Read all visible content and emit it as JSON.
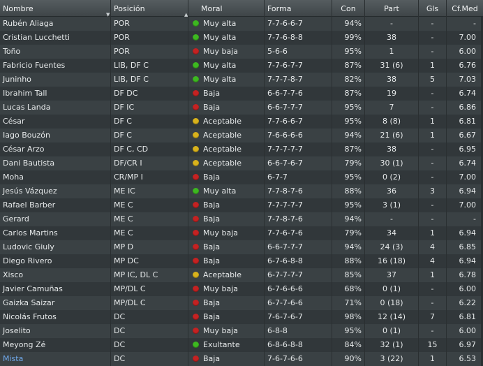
{
  "headers": {
    "name": "Nombre",
    "position": "Posición",
    "morale": "Moral",
    "form": "Forma",
    "con": "Con",
    "part": "Part",
    "gls": "Gls",
    "avg": "Cf.Med"
  },
  "morale_colors": {
    "green": "#3db820",
    "red": "#c42222",
    "yellow": "#d8b21c"
  },
  "link_color": "#6fa8ea",
  "players": [
    {
      "name": "Rubén Aliaga",
      "position": "POR",
      "morale": "Muy alta",
      "color": "green",
      "form": "7-7-6-6-7",
      "con": "94%",
      "part": "-",
      "gls": "-",
      "avg": "-"
    },
    {
      "name": "Cristian Lucchetti",
      "position": "POR",
      "morale": "Muy alta",
      "color": "green",
      "form": "7-7-6-8-8",
      "con": "99%",
      "part": "38",
      "gls": "-",
      "avg": "7.00"
    },
    {
      "name": "Toño",
      "position": "POR",
      "morale": "Muy baja",
      "color": "red",
      "form": "5-6-6",
      "con": "95%",
      "part": "1",
      "gls": "-",
      "avg": "6.00"
    },
    {
      "name": "Fabricio Fuentes",
      "position": "LIB, DF C",
      "morale": "Muy alta",
      "color": "green",
      "form": "7-7-6-7-7",
      "con": "87%",
      "part": "31 (6)",
      "gls": "1",
      "avg": "6.76"
    },
    {
      "name": "Juninho",
      "position": "LIB, DF C",
      "morale": "Muy alta",
      "color": "green",
      "form": "7-7-7-8-7",
      "con": "82%",
      "part": "38",
      "gls": "5",
      "avg": "7.03"
    },
    {
      "name": "Ibrahim Tall",
      "position": "DF DC",
      "morale": "Baja",
      "color": "red",
      "form": "6-6-7-7-6",
      "con": "87%",
      "part": "19",
      "gls": "-",
      "avg": "6.74"
    },
    {
      "name": "Lucas Landa",
      "position": "DF IC",
      "morale": "Baja",
      "color": "red",
      "form": "6-6-7-7-7",
      "con": "95%",
      "part": "7",
      "gls": "-",
      "avg": "6.86"
    },
    {
      "name": "César",
      "position": "DF C",
      "morale": "Aceptable",
      "color": "yellow",
      "form": "7-7-6-6-7",
      "con": "95%",
      "part": "8 (8)",
      "gls": "1",
      "avg": "6.81"
    },
    {
      "name": "Iago Bouzón",
      "position": "DF C",
      "morale": "Aceptable",
      "color": "yellow",
      "form": "7-6-6-6-6",
      "con": "94%",
      "part": "21 (6)",
      "gls": "1",
      "avg": "6.67"
    },
    {
      "name": "César Arzo",
      "position": "DF C, CD",
      "morale": "Aceptable",
      "color": "yellow",
      "form": "7-7-7-7-7",
      "con": "87%",
      "part": "38",
      "gls": "-",
      "avg": "6.95"
    },
    {
      "name": "Dani Bautista",
      "position": "DF/CR I",
      "morale": "Aceptable",
      "color": "yellow",
      "form": "6-6-7-6-7",
      "con": "79%",
      "part": "30 (1)",
      "gls": "-",
      "avg": "6.74"
    },
    {
      "name": "Moha",
      "position": "CR/MP I",
      "morale": "Baja",
      "color": "red",
      "form": "6-7-7",
      "con": "95%",
      "part": "0 (2)",
      "gls": "-",
      "avg": "7.00"
    },
    {
      "name": "Jesús Vázquez",
      "position": "ME IC",
      "morale": "Muy alta",
      "color": "green",
      "form": "7-7-8-7-6",
      "con": "88%",
      "part": "36",
      "gls": "3",
      "avg": "6.94"
    },
    {
      "name": "Rafael Barber",
      "position": "ME C",
      "morale": "Baja",
      "color": "red",
      "form": "7-7-7-7-7",
      "con": "95%",
      "part": "3 (1)",
      "gls": "-",
      "avg": "7.00"
    },
    {
      "name": "Gerard",
      "position": "ME C",
      "morale": "Baja",
      "color": "red",
      "form": "7-7-8-7-6",
      "con": "94%",
      "part": "-",
      "gls": "-",
      "avg": "-"
    },
    {
      "name": "Carlos Martins",
      "position": "ME C",
      "morale": "Muy baja",
      "color": "red",
      "form": "7-7-6-7-6",
      "con": "79%",
      "part": "34",
      "gls": "1",
      "avg": "6.94"
    },
    {
      "name": "Ludovic Giuly",
      "position": "MP D",
      "morale": "Baja",
      "color": "red",
      "form": "6-6-7-7-7",
      "con": "94%",
      "part": "24 (3)",
      "gls": "4",
      "avg": "6.85"
    },
    {
      "name": "Diego Rivero",
      "position": "MP DC",
      "morale": "Baja",
      "color": "red",
      "form": "6-7-6-8-8",
      "con": "88%",
      "part": "16 (18)",
      "gls": "4",
      "avg": "6.94"
    },
    {
      "name": "Xisco",
      "position": "MP IC, DL C",
      "morale": "Aceptable",
      "color": "yellow",
      "form": "6-7-7-7-7",
      "con": "85%",
      "part": "37",
      "gls": "1",
      "avg": "6.78"
    },
    {
      "name": "Javier Camuñas",
      "position": "MP/DL C",
      "morale": "Muy baja",
      "color": "red",
      "form": "6-7-6-6-6",
      "con": "68%",
      "part": "0 (1)",
      "gls": "-",
      "avg": "6.00"
    },
    {
      "name": "Gaizka Saizar",
      "position": "MP/DL C",
      "morale": "Baja",
      "color": "red",
      "form": "6-7-7-6-6",
      "con": "71%",
      "part": "0 (18)",
      "gls": "-",
      "avg": "6.22"
    },
    {
      "name": "Nicolás Frutos",
      "position": "DC",
      "morale": "Baja",
      "color": "red",
      "form": "7-6-7-6-7",
      "con": "98%",
      "part": "12 (14)",
      "gls": "7",
      "avg": "6.81"
    },
    {
      "name": "Joselito",
      "position": "DC",
      "morale": "Muy baja",
      "color": "red",
      "form": "6-8-8",
      "con": "95%",
      "part": "0 (1)",
      "gls": "-",
      "avg": "6.00"
    },
    {
      "name": "Meyong Zé",
      "position": "DC",
      "morale": "Exultante",
      "color": "green",
      "form": "6-8-6-8-8",
      "con": "84%",
      "part": "32 (1)",
      "gls": "15",
      "avg": "6.97"
    },
    {
      "name": "Mista",
      "position": "DC",
      "morale": "Baja",
      "color": "red",
      "form": "7-6-7-6-6",
      "con": "90%",
      "part": "3 (22)",
      "gls": "1",
      "avg": "6.53",
      "highlight": true
    }
  ]
}
